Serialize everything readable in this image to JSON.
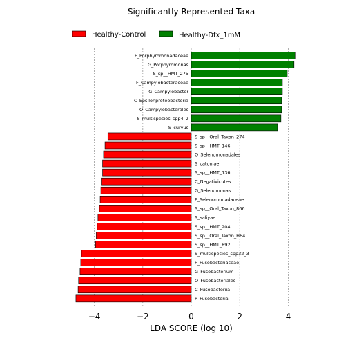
{
  "chart_data": {
    "type": "bar",
    "orientation": "horizontal",
    "title": "Significantly Represented Taxa",
    "xlabel": "LDA SCORE (log 10)",
    "ylabel": "",
    "xlim": [
      -5,
      5
    ],
    "xticks": [
      -4,
      -2,
      0,
      2,
      4
    ],
    "xtick_labels": [
      "−4",
      "−2",
      "0",
      "2",
      "4"
    ],
    "grid": "vertical dashed",
    "legend_position": "top",
    "series": [
      {
        "name": "Healthy-Control",
        "color": "#ff0000"
      },
      {
        "name": "Healthy-Dfx_1mM",
        "color": "#008000"
      }
    ],
    "bars": [
      {
        "label": "F_Porphyromonadaceae",
        "value": 4.28,
        "group": 1
      },
      {
        "label": "G_Porphyromonas",
        "value": 4.24,
        "group": 1
      },
      {
        "label": "S_sp__HMT_275",
        "value": 3.96,
        "group": 1
      },
      {
        "label": "F_Campylobacteraceae",
        "value": 3.76,
        "group": 1
      },
      {
        "label": "G_Campylobacter",
        "value": 3.76,
        "group": 1
      },
      {
        "label": "C_Epsilonproteobacteria",
        "value": 3.73,
        "group": 1
      },
      {
        "label": "O_Campylobacterales",
        "value": 3.73,
        "group": 1
      },
      {
        "label": "S_multispecies_spp4_2",
        "value": 3.7,
        "group": 1
      },
      {
        "label": "S_curvus",
        "value": 3.56,
        "group": 1
      },
      {
        "label": "S_sp__Oral_Taxon_274",
        "value": -3.44,
        "group": 0
      },
      {
        "label": "S_sp__HMT_146",
        "value": -3.56,
        "group": 0
      },
      {
        "label": "O_Selenomonadales",
        "value": -3.62,
        "group": 0
      },
      {
        "label": "S_catoniae",
        "value": -3.66,
        "group": 0
      },
      {
        "label": "S_sp__HMT_136",
        "value": -3.66,
        "group": 0
      },
      {
        "label": "C_Negativicutes",
        "value": -3.69,
        "group": 0
      },
      {
        "label": "G_Selenomonas",
        "value": -3.73,
        "group": 0
      },
      {
        "label": "F_Selenomonadaceae",
        "value": -3.76,
        "group": 0
      },
      {
        "label": "S_sp__Oral_Taxon_866",
        "value": -3.79,
        "group": 0
      },
      {
        "label": "S_saliyae",
        "value": -3.85,
        "group": 0
      },
      {
        "label": "S_sp__HMT_204",
        "value": -3.88,
        "group": 0
      },
      {
        "label": "S_sp__Oral_Taxon_H64",
        "value": -3.92,
        "group": 0
      },
      {
        "label": "S_sp__HMT_892",
        "value": -3.95,
        "group": 0
      },
      {
        "label": "S_multispecies_spp32_3",
        "value": -4.53,
        "group": 0
      },
      {
        "label": "F_Fusobacteriaceae",
        "value": -4.56,
        "group": 0
      },
      {
        "label": "G_Fusobacterium",
        "value": -4.59,
        "group": 0
      },
      {
        "label": "O_Fusobacteriales",
        "value": -4.65,
        "group": 0
      },
      {
        "label": "C_Fusobacteriia",
        "value": -4.67,
        "group": 0
      },
      {
        "label": "P_Fusobacteria",
        "value": -4.76,
        "group": 0
      }
    ]
  }
}
